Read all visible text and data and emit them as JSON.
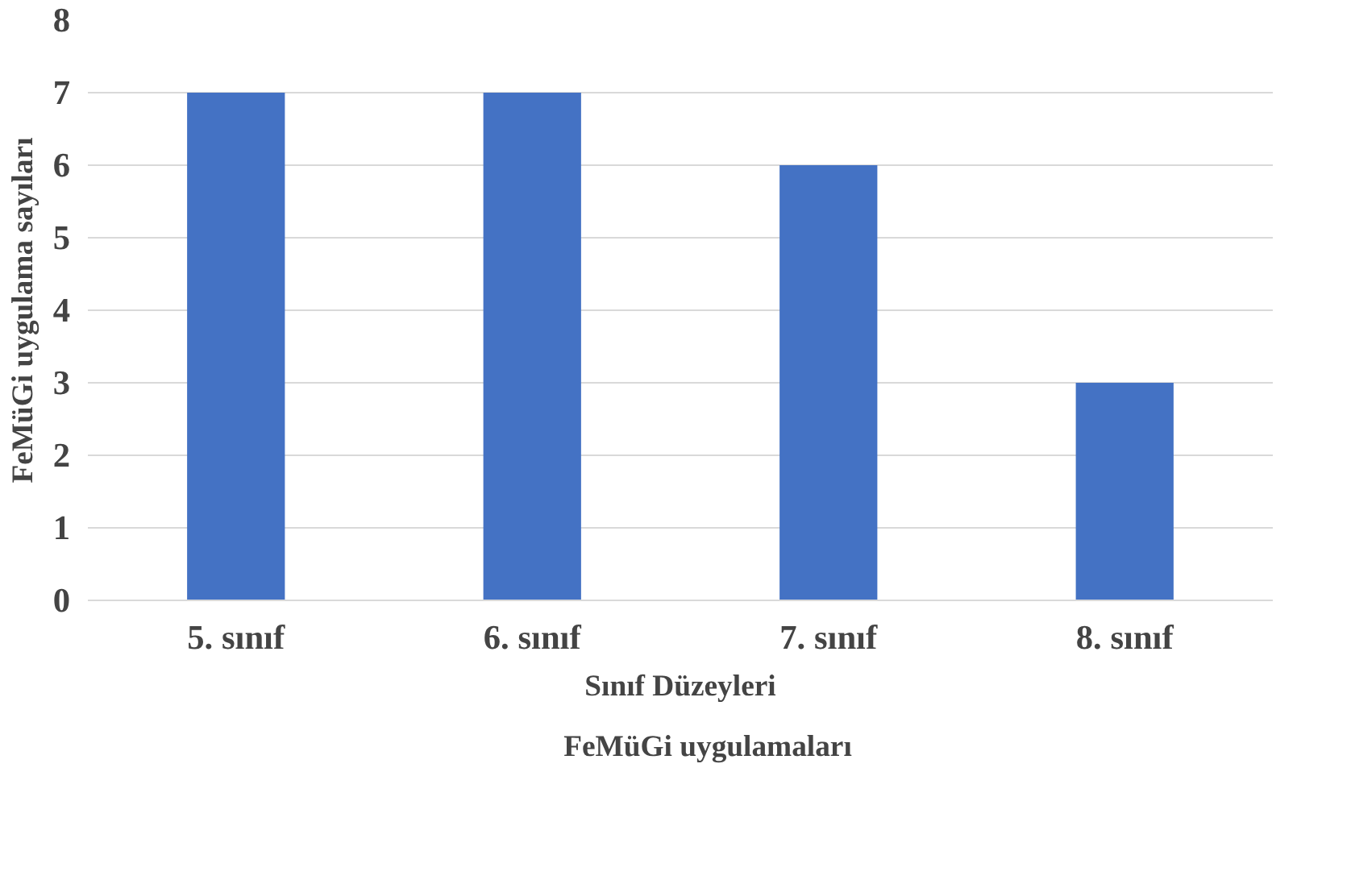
{
  "chart_data": {
    "type": "bar",
    "xlabel": "Sınıf Düzeyleri",
    "ylabel": "FeMüGi uygulama sayıları",
    "categories": [
      "5. sınıf",
      "6. sınıf",
      "7. sınıf",
      "8. sınıf"
    ],
    "series": [
      {
        "name": "FeMüGi uygulamaları",
        "color": "#4472c4",
        "values": [
          7,
          7,
          6,
          3
        ]
      }
    ],
    "ylim": [
      0,
      8
    ],
    "yticks": [
      0,
      1,
      2,
      3,
      4,
      5,
      6,
      7,
      8
    ],
    "grid": "y",
    "legend": "bottom"
  }
}
